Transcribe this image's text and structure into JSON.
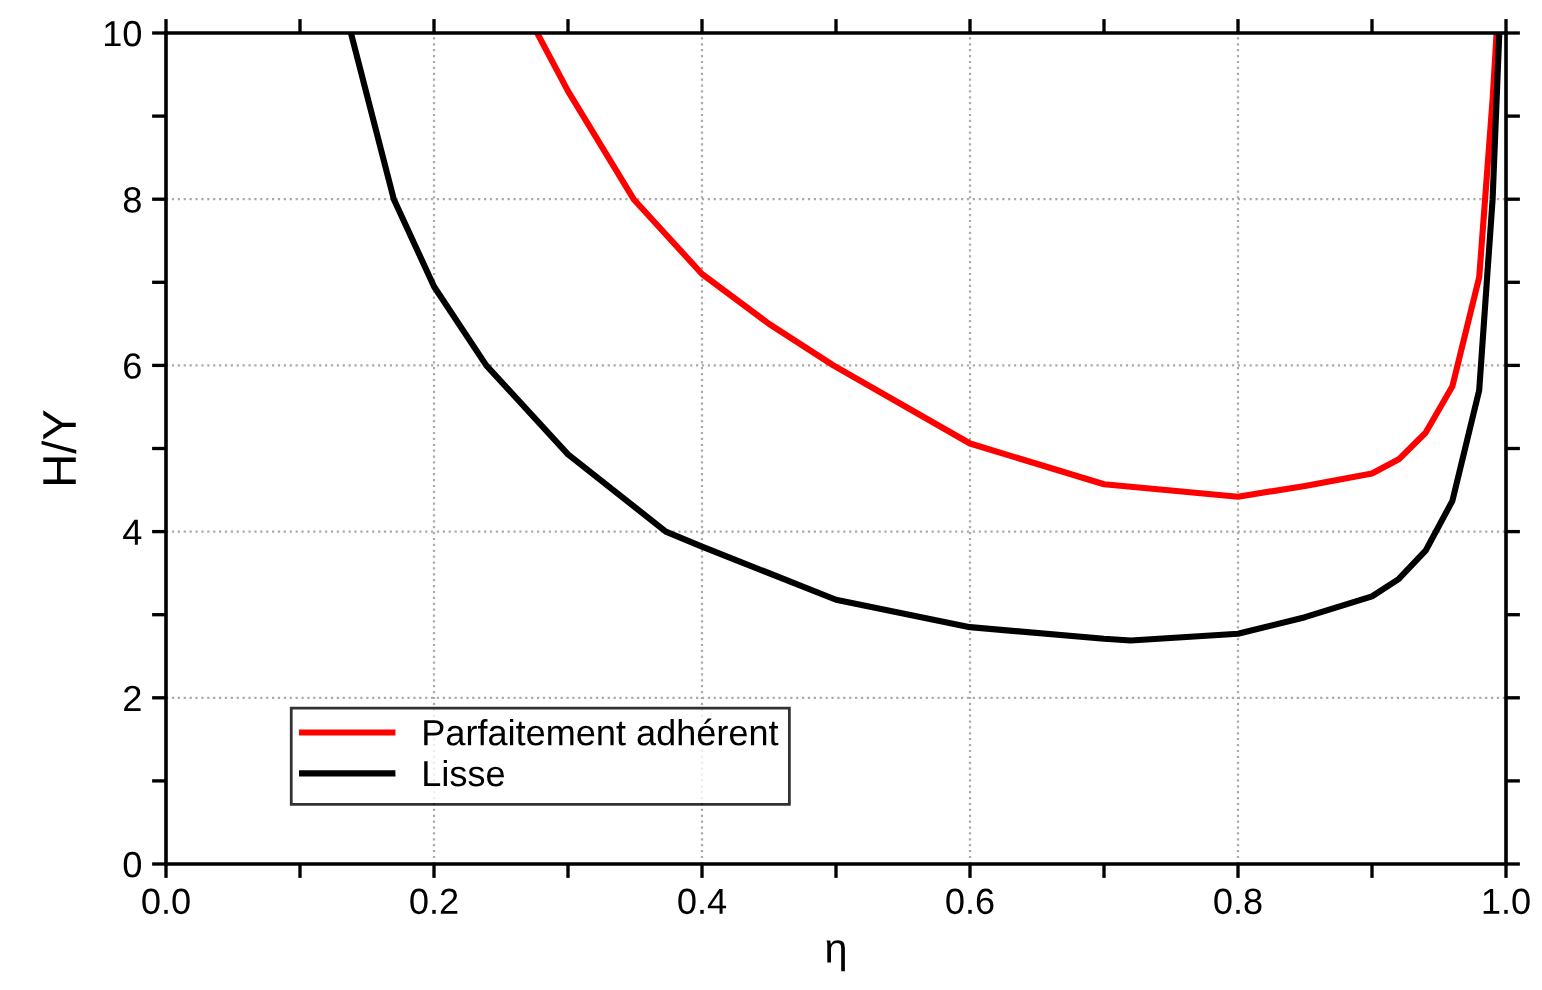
{
  "chart_data": {
    "type": "line",
    "xlabel": "η",
    "ylabel": "H/Y",
    "xlim": [
      0.0,
      1.0
    ],
    "ylim": [
      0,
      10
    ],
    "xticks": [
      {
        "value": 0.0,
        "label": "0.0"
      },
      {
        "value": 0.1,
        "label": null
      },
      {
        "value": 0.2,
        "label": "0.2"
      },
      {
        "value": 0.3,
        "label": null
      },
      {
        "value": 0.4,
        "label": "0.4"
      },
      {
        "value": 0.5,
        "label": null
      },
      {
        "value": 0.6,
        "label": "0.6"
      },
      {
        "value": 0.7,
        "label": null
      },
      {
        "value": 0.8,
        "label": "0.8"
      },
      {
        "value": 0.9,
        "label": null
      },
      {
        "value": 1.0,
        "label": "1.0"
      }
    ],
    "yticks": [
      0,
      {
        "value": 1,
        "label": null
      },
      2,
      {
        "value": 3,
        "label": null
      },
      4,
      {
        "value": 5,
        "label": null
      },
      6,
      {
        "value": 7,
        "label": null
      },
      8,
      {
        "value": 9,
        "label": null
      },
      10
    ],
    "grid": true,
    "legend": "bottom left",
    "marker": "none",
    "line_style": "solid",
    "series": [
      {
        "name": "Parfaitement adhérent",
        "color": "#ff0000",
        "x": [
          0.277,
          0.3,
          0.349,
          0.4,
          0.45,
          0.498,
          0.6,
          0.7,
          0.8,
          0.85,
          0.9,
          0.92,
          0.94,
          0.96,
          0.98,
          0.99,
          0.993
        ],
        "values": [
          10,
          9.3,
          8.0,
          7.1,
          6.5,
          6.0,
          5.06,
          4.57,
          4.42,
          4.55,
          4.7,
          4.87,
          5.19,
          5.75,
          7.06,
          9.2,
          10
        ]
      },
      {
        "name": "Lisse",
        "color": "#000000",
        "x": [
          0.138,
          0.17,
          0.2,
          0.239,
          0.3,
          0.373,
          0.4,
          0.5,
          0.6,
          0.7,
          0.72,
          0.8,
          0.85,
          0.9,
          0.92,
          0.94,
          0.96,
          0.98,
          0.99,
          0.995
        ],
        "values": [
          10,
          8.0,
          6.95,
          6.0,
          4.93,
          4.0,
          3.82,
          3.18,
          2.85,
          2.71,
          2.69,
          2.77,
          2.97,
          3.22,
          3.43,
          3.77,
          4.37,
          5.7,
          8.0,
          10
        ]
      }
    ]
  }
}
